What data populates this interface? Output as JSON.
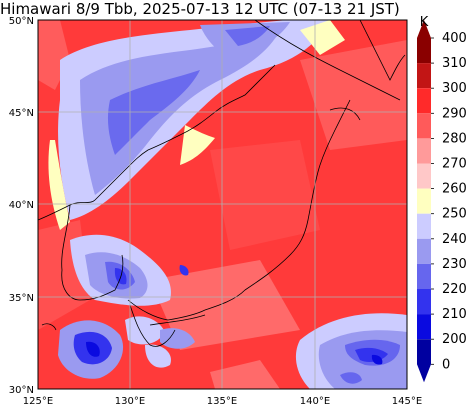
{
  "title": "Himawari 8/9 Tbb, 2025-07-13 12 UTC (07-13 21 JST)",
  "map": {
    "lat_labels": [
      "50°N",
      "45°N",
      "40°N",
      "35°N",
      "30°N"
    ],
    "lon_labels": [
      "125°E",
      "130°E",
      "135°E",
      "140°E",
      "145°E"
    ]
  },
  "colorbar": {
    "unit": "K",
    "ticks": [
      "400",
      "310",
      "300",
      "290",
      "280",
      "270",
      "260",
      "250",
      "240",
      "230",
      "220",
      "210",
      "200",
      "0"
    ],
    "colors": [
      "#8a0000",
      "#c21515",
      "#ff2a2a",
      "#ff5a5a",
      "#ff9a9a",
      "#ffc8c8",
      "#ffffc0",
      "#ccccff",
      "#9a9af0",
      "#6666ee",
      "#3333ee",
      "#0a0ae0",
      "#0000a0"
    ]
  }
}
